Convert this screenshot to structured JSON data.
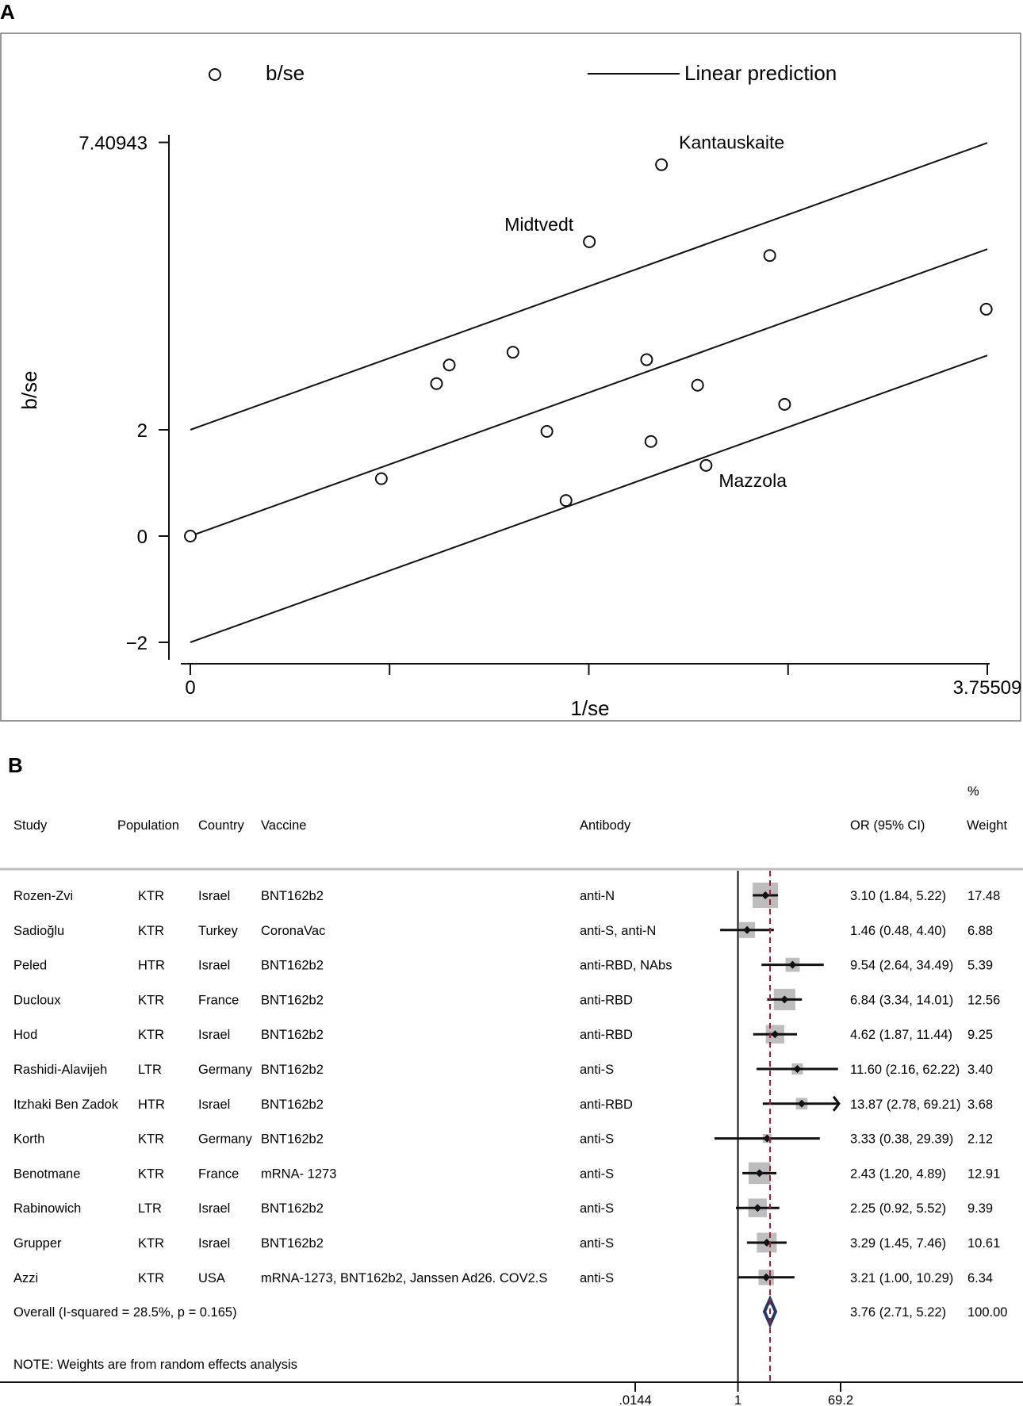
{
  "chart_data": [
    {
      "panel": "A",
      "type": "scatter",
      "title": "",
      "xlabel": "1/se",
      "ylabel": "b/se",
      "xlim": [
        0,
        3.75509
      ],
      "ylim": [
        -2,
        7.40943
      ],
      "x_tick_labels": [
        {
          "value": 0,
          "label": "0"
        },
        {
          "value": 3.75509,
          "label": "3.75509"
        }
      ],
      "x_unlabeled_ticks": [
        0.9387725,
        1.877545,
        2.8163175
      ],
      "y_ticks": [
        {
          "value": -2,
          "label": "−2"
        },
        {
          "value": 0,
          "label": "0"
        },
        {
          "value": 2,
          "label": "2"
        },
        {
          "value": 7.40943,
          "label": "7.40943"
        }
      ],
      "legend": {
        "position": "top",
        "marker_label": "b/se",
        "line_label": "Linear prediction"
      },
      "points": [
        {
          "x": 0.0,
          "y": 0.0
        },
        {
          "x": 0.9,
          "y": 1.08
        },
        {
          "x": 1.16,
          "y": 2.87
        },
        {
          "x": 1.22,
          "y": 3.22
        },
        {
          "x": 1.52,
          "y": 3.46
        },
        {
          "x": 1.68,
          "y": 1.97
        },
        {
          "x": 1.77,
          "y": 0.67
        },
        {
          "x": 1.88,
          "y": 5.54,
          "label": "Midtvedt"
        },
        {
          "x": 2.15,
          "y": 3.32
        },
        {
          "x": 2.17,
          "y": 1.78
        },
        {
          "x": 2.22,
          "y": 6.99,
          "label": "Kantauskaite"
        },
        {
          "x": 2.39,
          "y": 2.84
        },
        {
          "x": 2.43,
          "y": 1.33,
          "label": "Mazzola"
        },
        {
          "x": 2.73,
          "y": 5.28
        },
        {
          "x": 2.8,
          "y": 2.48
        },
        {
          "x": 3.75,
          "y": 4.27
        }
      ],
      "lines": [
        {
          "name": "upper",
          "x": [
            0,
            3.75509
          ],
          "y": [
            2.0,
            7.4
          ]
        },
        {
          "name": "Linear prediction",
          "x": [
            0,
            3.75509
          ],
          "y": [
            0.0,
            5.4
          ]
        },
        {
          "name": "lower",
          "x": [
            0,
            3.75509
          ],
          "y": [
            -2.0,
            3.4
          ]
        }
      ]
    },
    {
      "panel": "B",
      "type": "forest",
      "columns": {
        "study": "Study",
        "population": "Population",
        "country": "Country",
        "vaccine": "Vaccine",
        "antibody": "Antibody",
        "or": "OR (95% CI)",
        "weight_top": "%",
        "weight": "Weight"
      },
      "axis": {
        "scale": "log",
        "ticks": [
          {
            "value": 0.0144,
            "label": ".0144"
          },
          {
            "value": 1,
            "label": "1"
          },
          {
            "value": 69.2,
            "label": "69.2"
          }
        ],
        "null_value": 1,
        "overall_line": 3.76
      },
      "rows": [
        {
          "study": "Rozen-Zvi",
          "population": "KTR",
          "country": "Israel",
          "vaccine": "BNT162b2",
          "antibody": "anti-N",
          "or": 3.1,
          "lo": 1.84,
          "hi": 5.22,
          "or_text": "3.10 (1.84, 5.22)",
          "weight": 17.48,
          "weight_text": "17.48"
        },
        {
          "study": "Sadioğlu",
          "population": "KTR",
          "country": "Turkey",
          "vaccine": "CoronaVac",
          "antibody": "anti-S, anti-N",
          "or": 1.46,
          "lo": 0.48,
          "hi": 4.4,
          "or_text": "1.46 (0.48, 4.40)",
          "weight": 6.88,
          "weight_text": "6.88"
        },
        {
          "study": "Peled",
          "population": "HTR",
          "country": "Israel",
          "vaccine": "BNT162b2",
          "antibody": "anti-RBD, NAbs",
          "or": 9.54,
          "lo": 2.64,
          "hi": 34.49,
          "or_text": "9.54 (2.64, 34.49)",
          "weight": 5.39,
          "weight_text": "5.39"
        },
        {
          "study": "Ducloux",
          "population": "KTR",
          "country": "France",
          "vaccine": "BNT162b2",
          "antibody": "anti-RBD",
          "or": 6.84,
          "lo": 3.34,
          "hi": 14.01,
          "or_text": "6.84 (3.34, 14.01)",
          "weight": 12.56,
          "weight_text": "12.56"
        },
        {
          "study": "Hod",
          "population": "KTR",
          "country": "Israel",
          "vaccine": "BNT162b2",
          "antibody": "anti-RBD",
          "or": 4.62,
          "lo": 1.87,
          "hi": 11.44,
          "or_text": "4.62 (1.87, 11.44)",
          "weight": 9.25,
          "weight_text": "9.25"
        },
        {
          "study": "Rashidi-Alavijeh",
          "population": "LTR",
          "country": "Germany",
          "vaccine": "BNT162b2",
          "antibody": "anti-S",
          "or": 11.6,
          "lo": 2.16,
          "hi": 62.22,
          "or_text": "11.60 (2.16, 62.22)",
          "weight": 3.4,
          "weight_text": "3.40"
        },
        {
          "study": "Itzhaki Ben Zadok",
          "population": "HTR",
          "country": "Israel",
          "vaccine": "BNT162b2",
          "antibody": "anti-RBD",
          "or": 13.87,
          "lo": 2.78,
          "hi": 69.21,
          "or_text": "13.87 (2.78, 69.21)",
          "weight": 3.68,
          "weight_text": "3.68",
          "arrow": true
        },
        {
          "study": "Korth",
          "population": "KTR",
          "country": "Germany",
          "vaccine": "BNT162b2",
          "antibody": "anti-S",
          "or": 3.33,
          "lo": 0.38,
          "hi": 29.39,
          "or_text": "3.33 (0.38, 29.39)",
          "weight": 2.12,
          "weight_text": "2.12"
        },
        {
          "study": "Benotmane",
          "population": "KTR",
          "country": "France",
          "vaccine": "mRNA- 1273",
          "antibody": "anti-S",
          "or": 2.43,
          "lo": 1.2,
          "hi": 4.89,
          "or_text": "2.43 (1.20, 4.89)",
          "weight": 12.91,
          "weight_text": "12.91"
        },
        {
          "study": "Rabinowich",
          "population": "LTR",
          "country": "Israel",
          "vaccine": "BNT162b2",
          "antibody": "anti-S",
          "or": 2.25,
          "lo": 0.92,
          "hi": 5.52,
          "or_text": "2.25 (0.92, 5.52)",
          "weight": 9.39,
          "weight_text": "9.39"
        },
        {
          "study": "Grupper",
          "population": "KTR",
          "country": "Israel",
          "vaccine": "BNT162b2",
          "antibody": "anti-S",
          "or": 3.29,
          "lo": 1.45,
          "hi": 7.46,
          "or_text": "3.29 (1.45, 7.46)",
          "weight": 10.61,
          "weight_text": "10.61"
        },
        {
          "study": "Azzi",
          "population": "KTR",
          "country": "USA",
          "vaccine": "mRNA-1273, BNT162b2, Janssen Ad26. COV2.S",
          "antibody": "anti-S",
          "or": 3.21,
          "lo": 1.0,
          "hi": 10.29,
          "or_text": "3.21 (1.00, 10.29)",
          "weight": 6.34,
          "weight_text": "6.34"
        }
      ],
      "overall": {
        "label": "Overall  (I-squared = 28.5%, p = 0.165)",
        "or": 3.76,
        "lo": 2.71,
        "hi": 5.22,
        "or_text": "3.76 (2.71, 5.22)",
        "weight_text": "100.00"
      },
      "note": "NOTE: Weights are from random effects analysis"
    }
  ],
  "labels": {
    "panel_a": "A",
    "panel_b": "B"
  },
  "colors": {
    "ink": "#111111",
    "box": "#bdbdbd",
    "overall_line": "#9b2335",
    "diamond": "#1f3a68",
    "frame": "#777777",
    "rule": "#bdbdbd"
  }
}
